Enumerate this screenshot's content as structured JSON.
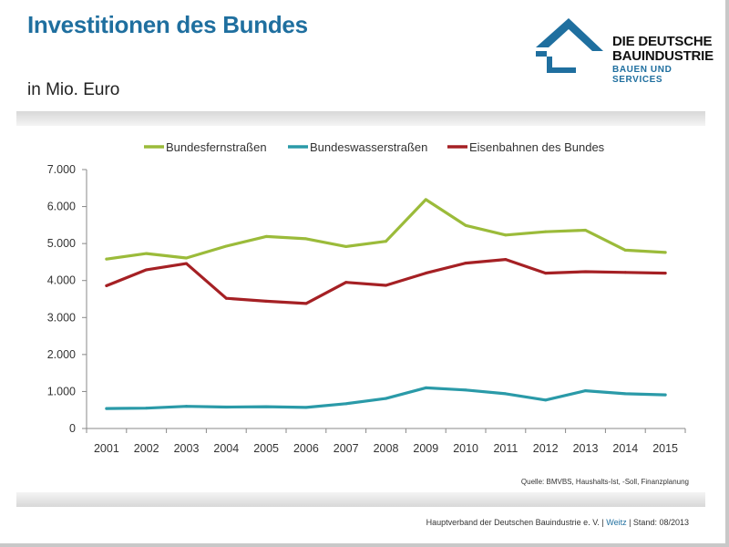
{
  "header": {
    "title": "Investitionen des Bundes",
    "subtitle": "in Mio. Euro"
  },
  "logo": {
    "line1": "DIE DEUTSCHE",
    "line2": "BAUINDUSTRIE",
    "line3": "BAUEN UND SERVICES",
    "icon": "house-roof-logo-icon",
    "color": "#1f6f9f"
  },
  "source": "Quelle: BMVBS, Haushalts-Ist, -Soll, Finanzplanung",
  "footer": {
    "org": "Hauptverband der Deutschen Bauindustrie e. V. |",
    "author": "Weitz",
    "stand": "| Stand: 08/2013"
  },
  "chart_data": {
    "type": "line",
    "title": "",
    "xlabel": "",
    "ylabel": "",
    "x": [
      "2001",
      "2002",
      "2003",
      "2004",
      "2005",
      "2006",
      "2007",
      "2008",
      "2009",
      "2010",
      "2011",
      "2012",
      "2013",
      "2014",
      "2015"
    ],
    "ylim": [
      0,
      7000
    ],
    "yticks": [
      0,
      1000,
      2000,
      3000,
      4000,
      5000,
      6000,
      7000
    ],
    "ytick_labels": [
      "0",
      "1.000",
      "2.000",
      "3.000",
      "4.000",
      "5.000",
      "6.000",
      "7.000"
    ],
    "legend_position": "top",
    "grid": false,
    "series": [
      {
        "name": "Bundesfernstraßen",
        "color": "#9bbb3a",
        "values": [
          4580,
          4730,
          4610,
          4930,
          5190,
          5130,
          4920,
          5060,
          6190,
          5490,
          5230,
          5320,
          5360,
          4820,
          4760
        ]
      },
      {
        "name": "Bundeswasserstraßen",
        "color": "#2a9aa8",
        "values": [
          540,
          550,
          600,
          580,
          590,
          570,
          670,
          810,
          1100,
          1040,
          940,
          770,
          1020,
          940,
          910
        ]
      },
      {
        "name": "Eisenbahnen des Bundes",
        "color": "#a52024",
        "values": [
          3860,
          4290,
          4460,
          3520,
          3440,
          3380,
          3950,
          3870,
          4200,
          4470,
          4570,
          4200,
          4240,
          4220,
          4200
        ]
      }
    ]
  }
}
